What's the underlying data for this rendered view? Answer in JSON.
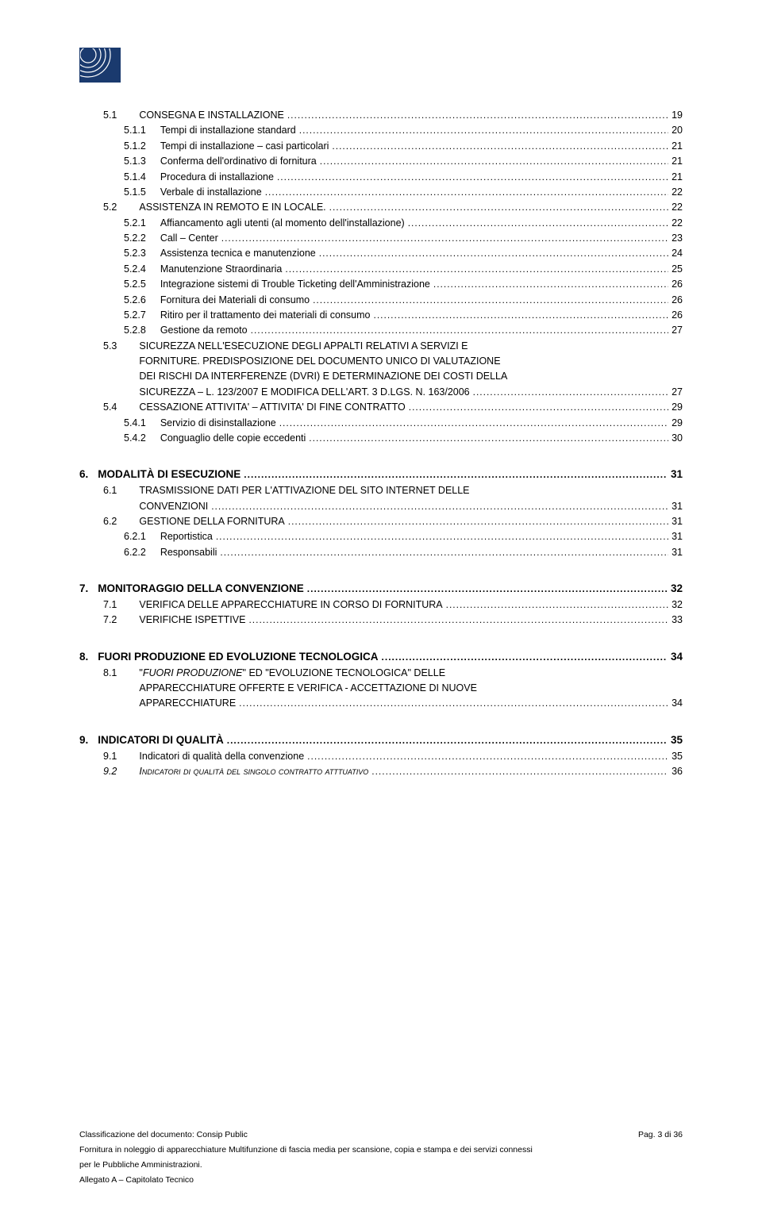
{
  "logo": {
    "border": "#1a3a6e",
    "fill": "#1a3a6e",
    "arc": "#ffffff"
  },
  "toc": [
    {
      "items": [
        {
          "level": 2,
          "num": "5.1",
          "label": "CONSEGNA E INSTALLAZIONE",
          "page": "19"
        },
        {
          "level": 3,
          "num": "5.1.1",
          "label": "Tempi di installazione standard",
          "page": "20"
        },
        {
          "level": 3,
          "num": "5.1.2",
          "label": "Tempi di installazione – casi particolari",
          "page": "21"
        },
        {
          "level": 3,
          "num": "5.1.3",
          "label": "Conferma dell'ordinativo di fornitura",
          "page": "21"
        },
        {
          "level": 3,
          "num": "5.1.4",
          "label": "Procedura di installazione",
          "page": "21"
        },
        {
          "level": 3,
          "num": "5.1.5",
          "label": "Verbale di installazione",
          "page": "22"
        },
        {
          "level": 2,
          "num": "5.2",
          "label": "ASSISTENZA IN REMOTO E IN LOCALE.",
          "page": "22"
        },
        {
          "level": 3,
          "num": "5.2.1",
          "label": "Affiancamento agli utenti (al momento dell'installazione)",
          "page": "22"
        },
        {
          "level": 3,
          "num": "5.2.2",
          "label": "Call – Center",
          "page": "23"
        },
        {
          "level": 3,
          "num": "5.2.3",
          "label": "Assistenza tecnica e manutenzione",
          "page": "24"
        },
        {
          "level": 3,
          "num": "5.2.4",
          "label": "Manutenzione Straordinaria",
          "page": "25"
        },
        {
          "level": 3,
          "num": "5.2.5",
          "label": "Integrazione sistemi di Trouble Ticketing dell'Amministrazione",
          "page": "26"
        },
        {
          "level": 3,
          "num": "5.2.6",
          "label": "Fornitura dei Materiali di consumo",
          "page": "26"
        },
        {
          "level": 3,
          "num": "5.2.7",
          "label": "Ritiro per il trattamento dei materiali di consumo",
          "page": "26"
        },
        {
          "level": 3,
          "num": "5.2.8",
          "label": "Gestione da remoto",
          "page": "27"
        },
        {
          "level": "multi",
          "num": "5.3",
          "lines": [
            "SICUREZZA NELL'ESECUZIONE DEGLI APPALTI RELATIVI A SERVIZI E",
            "FORNITURE. PREDISPOSIZIONE DEL DOCUMENTO UNICO DI VALUTAZIONE",
            "DEI RISCHI DA INTERFERENZE (DVRI) E DETERMINAZIONE DEI COSTI DELLA"
          ],
          "last": "SICUREZZA – L. 123/2007 E MODIFICA DELL'ART. 3 D.LGS. N. 163/2006",
          "page": "27"
        },
        {
          "level": 2,
          "num": "5.4",
          "label": "CESSAZIONE ATTIVITA' – ATTIVITA' DI FINE CONTRATTO",
          "page": "29"
        },
        {
          "level": 3,
          "num": "5.4.1",
          "label": "Servizio di disinstallazione",
          "page": "29"
        },
        {
          "level": 3,
          "num": "5.4.2",
          "label": "Conguaglio delle copie eccedenti",
          "page": "30"
        }
      ]
    },
    {
      "items": [
        {
          "level": 1,
          "num": "6.",
          "label": "MODALITÀ DI ESECUZIONE",
          "page": "31"
        },
        {
          "level": "multi2",
          "num": "6.1",
          "lines": [
            "TRASMISSIONE DATI PER L'ATTIVAZIONE DEL SITO INTERNET DELLE"
          ],
          "last": "CONVENZIONI",
          "page": "31"
        },
        {
          "level": 2,
          "num": "6.2",
          "label": "GESTIONE DELLA FORNITURA",
          "page": "31"
        },
        {
          "level": 3,
          "num": "6.2.1",
          "label": "Reportistica",
          "page": "31"
        },
        {
          "level": 3,
          "num": "6.2.2",
          "label": "Responsabili",
          "page": "31"
        }
      ]
    },
    {
      "items": [
        {
          "level": 1,
          "num": "7.",
          "label": "MONITORAGGIO DELLA CONVENZIONE",
          "page": "32"
        },
        {
          "level": 2,
          "num": "7.1",
          "label": "VERIFICA DELLE APPARECCHIATURE IN CORSO DI FORNITURA",
          "page": "32"
        },
        {
          "level": 2,
          "num": "7.2",
          "label": "VERIFICHE ISPETTIVE",
          "page": "33"
        }
      ]
    },
    {
      "items": [
        {
          "level": 1,
          "num": "8.",
          "label": "FUORI PRODUZIONE ED EVOLUZIONE TECNOLOGICA",
          "page": "34"
        },
        {
          "level": "multi2",
          "num": "8.1",
          "lines": [
            "\"<i>FUORI PRODUZIONE</i>\" ED \"EVOLUZIONE TECNOLOGICA\" DELLE",
            "APPARECCHIATURE OFFERTE E VERIFICA - ACCETTAZIONE DI NUOVE"
          ],
          "last": "APPARECCHIATURE",
          "page": "34"
        }
      ]
    },
    {
      "items": [
        {
          "level": 1,
          "num": "9.",
          "label": "INDICATORI DI QUALITÀ",
          "page": "35"
        },
        {
          "level": 2,
          "num": "9.1",
          "label": "Indicatori di qualità della convenzione",
          "page": "35"
        },
        {
          "level": 2,
          "num": "9.2",
          "label": "<span class=\"smallcaps\">Indicatori di qualità del singolo contratto atttuativo</span>",
          "page": "36",
          "italic": true
        }
      ]
    }
  ],
  "footer": {
    "classification": "Classificazione del documento: Consip Public",
    "page_label": "Pag. 3 di 36",
    "line2": "Fornitura in noleggio di apparecchiature Multifunzione di fascia media per scansione, copia e stampa e dei servizi connessi",
    "line3": "per le Pubbliche Amministrazioni.",
    "line4": "Allegato A – Capitolato Tecnico"
  }
}
